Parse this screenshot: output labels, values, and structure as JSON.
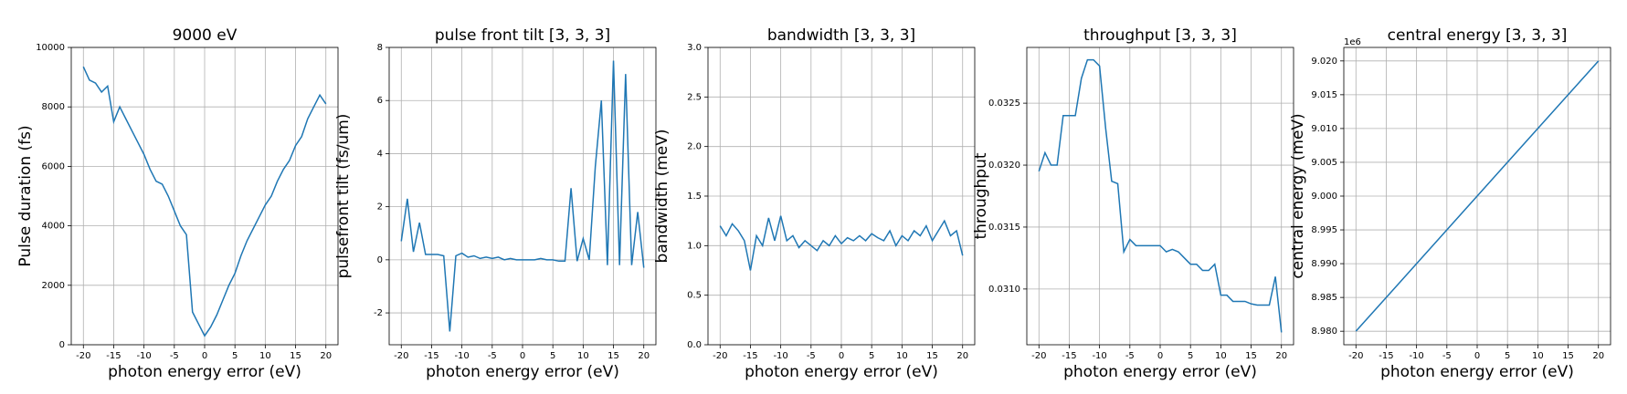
{
  "chart_data": [
    {
      "type": "line",
      "title": "9000 eV",
      "x_label": "photon energy error (eV)",
      "y_label": "Pulse duration (fs)",
      "color": "#1f77b4",
      "grid": true,
      "x": [
        -20,
        -19,
        -18,
        -17,
        -16,
        -15,
        -14,
        -13,
        -12,
        -11,
        -10,
        -9,
        -8,
        -7,
        -6,
        -5,
        -4,
        -3,
        -2,
        -1,
        0,
        1,
        2,
        3,
        4,
        5,
        6,
        7,
        8,
        9,
        10,
        11,
        12,
        13,
        14,
        15,
        16,
        17,
        18,
        19,
        20
      ],
      "values": [
        9350,
        8900,
        8800,
        8500,
        8700,
        7500,
        8000,
        7600,
        7200,
        6800,
        6400,
        5900,
        5500,
        5400,
        5000,
        4500,
        4000,
        3700,
        1100,
        700,
        300,
        600,
        1000,
        1500,
        2000,
        2400,
        3000,
        3500,
        3900,
        4300,
        4700,
        5000,
        5500,
        5900,
        6200,
        6700,
        7000,
        7600,
        8000,
        8400,
        8100
      ],
      "xlim": [
        -22,
        22
      ],
      "xticks": [
        -20,
        -15,
        -10,
        -5,
        0,
        5,
        10,
        15,
        20
      ],
      "ylim": [
        0,
        10000
      ],
      "yticks": [
        0,
        2000,
        4000,
        6000,
        8000,
        10000
      ]
    },
    {
      "type": "line",
      "title": "pulse front tilt [3, 3, 3]",
      "x_label": "photon energy error (eV)",
      "y_label": "pulsefront tilt (fs/um)",
      "color": "#1f77b4",
      "grid": true,
      "x": [
        -20,
        -19,
        -18,
        -17,
        -16,
        -15,
        -14,
        -13,
        -12,
        -11,
        -10,
        -9,
        -8,
        -7,
        -6,
        -5,
        -4,
        -3,
        -2,
        -1,
        0,
        1,
        2,
        3,
        4,
        5,
        6,
        7,
        8,
        9,
        10,
        11,
        12,
        13,
        14,
        15,
        16,
        17,
        18,
        19,
        20
      ],
      "values": [
        0.7,
        2.3,
        0.3,
        1.4,
        0.2,
        0.2,
        0.2,
        0.15,
        -2.7,
        0.15,
        0.25,
        0.1,
        0.15,
        0.05,
        0.1,
        0.05,
        0.1,
        0.0,
        0.05,
        0.0,
        0.0,
        0.0,
        0.0,
        0.05,
        0.0,
        0.0,
        -0.05,
        -0.05,
        2.7,
        -0.05,
        0.8,
        0.0,
        3.5,
        6.0,
        -0.2,
        7.5,
        -0.2,
        7.0,
        -0.2,
        1.8,
        -0.3
      ],
      "xlim": [
        -22,
        22
      ],
      "xticks": [
        -20,
        -15,
        -10,
        -5,
        0,
        5,
        10,
        15,
        20
      ],
      "ylim": [
        -3.2,
        8
      ],
      "yticks": [
        -2,
        0,
        2,
        4,
        6,
        8
      ]
    },
    {
      "type": "line",
      "title": "bandwidth [3, 3, 3]",
      "x_label": "photon energy error (eV)",
      "y_label": "bandwidth (meV)",
      "color": "#1f77b4",
      "grid": true,
      "x": [
        -20,
        -19,
        -18,
        -17,
        -16,
        -15,
        -14,
        -13,
        -12,
        -11,
        -10,
        -9,
        -8,
        -7,
        -6,
        -5,
        -4,
        -3,
        -2,
        -1,
        0,
        1,
        2,
        3,
        4,
        5,
        6,
        7,
        8,
        9,
        10,
        11,
        12,
        13,
        14,
        15,
        16,
        17,
        18,
        19,
        20
      ],
      "values": [
        1.2,
        1.1,
        1.22,
        1.15,
        1.05,
        0.75,
        1.1,
        1.0,
        1.28,
        1.05,
        1.3,
        1.05,
        1.1,
        0.98,
        1.05,
        1.0,
        0.95,
        1.05,
        1.0,
        1.1,
        1.02,
        1.08,
        1.05,
        1.1,
        1.05,
        1.12,
        1.08,
        1.05,
        1.15,
        1.0,
        1.1,
        1.05,
        1.15,
        1.1,
        1.2,
        1.05,
        1.15,
        1.25,
        1.1,
        1.15,
        0.9
      ],
      "xlim": [
        -22,
        22
      ],
      "xticks": [
        -20,
        -15,
        -10,
        -5,
        0,
        5,
        10,
        15,
        20
      ],
      "ylim": [
        0,
        3
      ],
      "yticks": [
        {
          "value": 0,
          "label": "0.0"
        },
        0.5,
        {
          "value": 1,
          "label": "1.0"
        },
        1.5,
        {
          "value": 2,
          "label": "2.0"
        },
        2.5,
        {
          "value": 3,
          "label": "3.0"
        }
      ]
    },
    {
      "type": "line",
      "title": "throughput [3, 3, 3]",
      "x_label": "photon energy error (eV)",
      "y_label": "throughput",
      "color": "#1f77b4",
      "grid": true,
      "x": [
        -20,
        -19,
        -18,
        -17,
        -16,
        -15,
        -14,
        -13,
        -12,
        -11,
        -10,
        -9,
        -8,
        -7,
        -6,
        -5,
        -4,
        -3,
        -2,
        -1,
        0,
        1,
        2,
        3,
        4,
        5,
        6,
        7,
        8,
        9,
        10,
        11,
        12,
        13,
        14,
        15,
        16,
        17,
        18,
        19,
        20
      ],
      "values": [
        0.03195,
        0.0321,
        0.032,
        0.032,
        0.0324,
        0.0324,
        0.0324,
        0.0327,
        0.03285,
        0.03285,
        0.0328,
        0.0323,
        0.03187,
        0.03185,
        0.0313,
        0.0314,
        0.03135,
        0.03135,
        0.03135,
        0.03135,
        0.03135,
        0.0313,
        0.03132,
        0.0313,
        0.03125,
        0.0312,
        0.0312,
        0.03115,
        0.03115,
        0.0312,
        0.03095,
        0.03095,
        0.0309,
        0.0309,
        0.0309,
        0.03088,
        0.03087,
        0.03087,
        0.03087,
        0.0311,
        0.03065
      ],
      "xlim": [
        -22,
        22
      ],
      "xticks": [
        -20,
        -15,
        -10,
        -5,
        0,
        5,
        10,
        15,
        20
      ],
      "ylim": [
        0.03055,
        0.03295
      ],
      "yticks": [
        {
          "value": 0.031,
          "label": "0.0310"
        },
        0.0315,
        {
          "value": 0.032,
          "label": "0.0320"
        },
        0.0325
      ]
    },
    {
      "type": "line",
      "title": "central energy [3, 3, 3]",
      "x_label": "photon energy error (eV)",
      "y_label": "central energy (meV)",
      "offset_text": "1e6",
      "color": "#1f77b4",
      "grid": true,
      "x": [
        -20,
        20
      ],
      "values": [
        8980000,
        9020000
      ],
      "xlim": [
        -22,
        22
      ],
      "xticks": [
        -20,
        -15,
        -10,
        -5,
        0,
        5,
        10,
        15,
        20
      ],
      "ylim": [
        8978000,
        9022000
      ],
      "yticks": [
        {
          "value": 8980000,
          "label": "8.980"
        },
        {
          "value": 8985000,
          "label": "8.985"
        },
        {
          "value": 8990000,
          "label": "8.990"
        },
        {
          "value": 8995000,
          "label": "8.995"
        },
        {
          "value": 9000000,
          "label": "9.000"
        },
        {
          "value": 9005000,
          "label": "9.005"
        },
        {
          "value": 9010000,
          "label": "9.010"
        },
        {
          "value": 9015000,
          "label": "9.015"
        },
        {
          "value": 9020000,
          "label": "9.020"
        }
      ]
    }
  ]
}
